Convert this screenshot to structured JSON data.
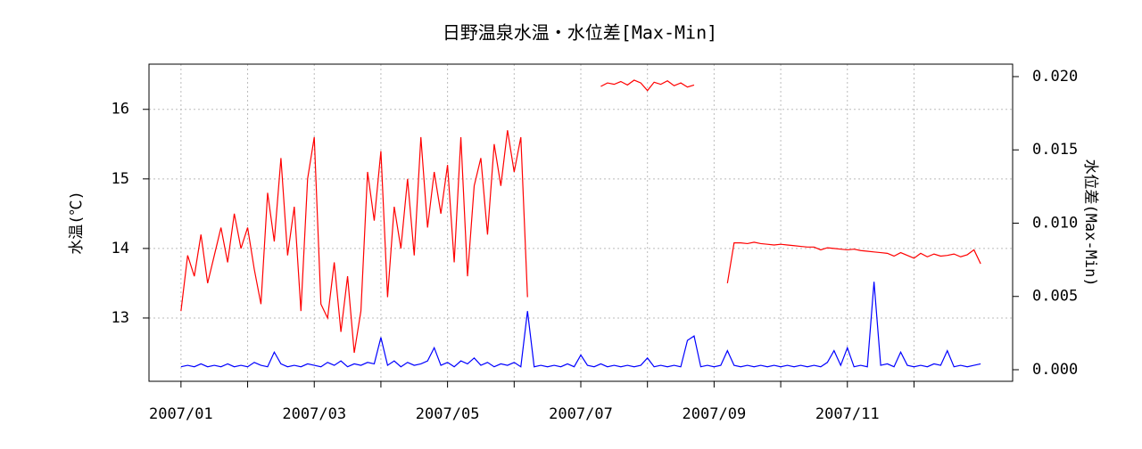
{
  "chart_data": {
    "type": "line",
    "title": "日野温泉水温・水位差[Max-Min]",
    "y_label": "水温(℃)",
    "y2_label": "水位差(Max-Min)",
    "x": [
      1.0,
      1.1,
      1.2,
      1.3,
      1.4,
      1.5,
      1.6,
      1.7,
      1.8,
      1.9,
      2.0,
      2.1,
      2.2,
      2.3,
      2.4,
      2.5,
      2.6,
      2.7,
      2.8,
      2.9,
      3.0,
      3.1,
      3.2,
      3.3,
      3.4,
      3.5,
      3.6,
      3.7,
      3.8,
      3.9,
      4.0,
      4.1,
      4.2,
      4.3,
      4.4,
      4.5,
      4.6,
      4.7,
      4.8,
      4.9,
      5.0,
      5.1,
      5.2,
      5.3,
      5.4,
      5.5,
      5.6,
      5.7,
      5.8,
      5.9,
      6.0,
      6.1,
      6.2,
      6.3,
      6.4,
      6.5,
      6.6,
      6.7,
      6.8,
      6.9,
      7.0,
      7.1,
      7.2,
      7.3,
      7.4,
      7.5,
      7.6,
      7.7,
      7.8,
      7.9,
      8.0,
      8.1,
      8.2,
      8.3,
      8.4,
      8.5,
      8.6,
      8.7,
      8.8,
      8.9,
      9.0,
      9.1,
      9.2,
      9.3,
      9.4,
      9.5,
      9.6,
      9.7,
      9.8,
      9.9,
      10.0,
      10.1,
      10.2,
      10.3,
      10.4,
      10.5,
      10.6,
      10.7,
      10.8,
      10.9,
      11.0,
      11.1,
      11.2,
      11.3,
      11.4,
      11.5,
      11.6,
      11.7,
      11.8,
      11.9,
      12.0,
      12.1,
      12.2,
      12.3,
      12.4,
      12.5,
      12.6,
      12.7,
      12.8,
      12.9,
      13.0
    ],
    "series": [
      {
        "name": "水温",
        "color": "#ff0000",
        "axis": "y",
        "values": [
          13.1,
          13.9,
          13.6,
          14.2,
          13.5,
          13.9,
          14.3,
          13.8,
          14.5,
          14.0,
          14.3,
          13.7,
          13.2,
          14.8,
          14.1,
          15.3,
          13.9,
          14.6,
          13.1,
          15.0,
          15.6,
          13.2,
          13.0,
          13.8,
          12.8,
          13.6,
          12.5,
          13.1,
          15.1,
          14.4,
          15.4,
          13.3,
          14.6,
          14.0,
          15.0,
          13.9,
          15.6,
          14.3,
          15.1,
          14.5,
          15.2,
          13.8,
          15.6,
          13.6,
          14.9,
          15.3,
          14.2,
          15.5,
          14.9,
          15.7,
          15.1,
          15.6,
          13.3,
          null,
          null,
          null,
          null,
          null,
          null,
          null,
          null,
          null,
          null,
          16.33,
          16.38,
          16.36,
          16.4,
          16.35,
          16.42,
          16.38,
          16.27,
          16.39,
          16.36,
          16.41,
          16.34,
          16.38,
          16.32,
          16.35,
          null,
          null,
          null,
          null,
          13.5,
          14.08,
          14.08,
          14.07,
          14.09,
          14.07,
          14.06,
          14.05,
          14.06,
          14.05,
          14.04,
          14.03,
          14.02,
          14.02,
          13.98,
          14.01,
          14.0,
          13.99,
          13.98,
          13.99,
          13.97,
          13.96,
          13.95,
          13.94,
          13.93,
          13.89,
          13.94,
          13.9,
          13.86,
          13.93,
          13.88,
          13.92,
          13.89,
          13.9,
          13.92,
          13.88,
          13.91,
          13.98,
          13.78
        ]
      },
      {
        "name": "水位差",
        "color": "#0000ff",
        "axis": "y2",
        "values": [
          0.0002,
          0.0003,
          0.0002,
          0.0004,
          0.0002,
          0.0003,
          0.0002,
          0.0004,
          0.0002,
          0.0003,
          0.0002,
          0.0005,
          0.0003,
          0.0002,
          0.0012,
          0.0004,
          0.0002,
          0.0003,
          0.0002,
          0.0004,
          0.0003,
          0.0002,
          0.0005,
          0.0003,
          0.0006,
          0.0002,
          0.0004,
          0.0003,
          0.0005,
          0.0004,
          0.0022,
          0.0003,
          0.0006,
          0.0002,
          0.0005,
          0.0003,
          0.0004,
          0.0006,
          0.0015,
          0.0003,
          0.0005,
          0.0002,
          0.0006,
          0.0004,
          0.0008,
          0.0003,
          0.0005,
          0.0002,
          0.0004,
          0.0003,
          0.0005,
          0.0002,
          0.004,
          0.0002,
          0.0003,
          0.0002,
          0.0003,
          0.0002,
          0.0004,
          0.0002,
          0.001,
          0.0003,
          0.0002,
          0.0004,
          0.0002,
          0.0003,
          0.0002,
          0.0003,
          0.0002,
          0.0003,
          0.0008,
          0.0002,
          0.0003,
          0.0002,
          0.0003,
          0.0002,
          0.002,
          0.0023,
          0.0002,
          0.0003,
          0.0002,
          0.0003,
          0.0013,
          0.0003,
          0.0002,
          0.0003,
          0.0002,
          0.0003,
          0.0002,
          0.0003,
          0.0002,
          0.0003,
          0.0002,
          0.0003,
          0.0002,
          0.0003,
          0.0002,
          0.0005,
          0.0013,
          0.0003,
          0.0015,
          0.0002,
          0.0003,
          0.0002,
          0.006,
          0.0003,
          0.0004,
          0.0002,
          0.0012,
          0.0003,
          0.0002,
          0.0003,
          0.0002,
          0.0004,
          0.0003,
          0.0013,
          0.0002,
          0.0003,
          0.0002,
          0.0003,
          0.0004
        ]
      }
    ],
    "xlim": [
      0.52,
      13.48
    ],
    "xticks": [
      {
        "value": 1,
        "label": "2007/01"
      },
      {
        "value": 3,
        "label": "2007/03"
      },
      {
        "value": 5,
        "label": "2007/05"
      },
      {
        "value": 7,
        "label": "2007/07"
      },
      {
        "value": 9,
        "label": "2007/09"
      },
      {
        "value": 11,
        "label": "2007/11"
      }
    ],
    "xminor_ticks": [
      2,
      4,
      6,
      8,
      10,
      12
    ],
    "ylim": [
      12.09,
      16.65
    ],
    "yticks": [
      13,
      14,
      15,
      16
    ],
    "y2lim": [
      -0.00079,
      0.02085
    ],
    "y2ticks": [
      {
        "value": 0,
        "label": "0.000"
      },
      {
        "value": 0.005,
        "label": "0.005"
      },
      {
        "value": 0.01,
        "label": "0.010"
      },
      {
        "value": 0.015,
        "label": "0.015"
      },
      {
        "value": 0.02,
        "label": "0.020"
      }
    ],
    "grid": true
  }
}
